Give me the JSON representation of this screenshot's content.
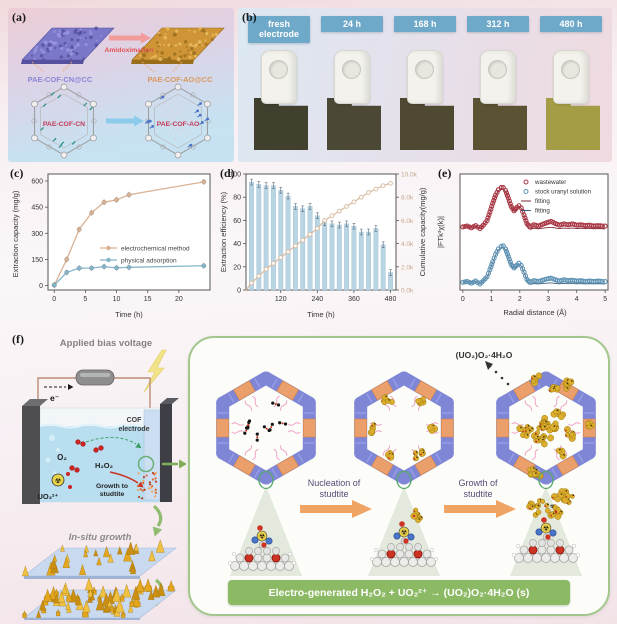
{
  "panels": {
    "a": "(a)",
    "b": "(b)",
    "c": "(c)",
    "d": "(d)",
    "e": "(e)",
    "f": "(f)"
  },
  "panel_a": {
    "membrane_left": "PAE-COF-CN@CC",
    "membrane_right": "PAE-COF-AO@CC",
    "reaction": "Amidoximation",
    "cof_left": "PAE-COF-CN",
    "cof_right": "PAE-COF-AO",
    "colors": {
      "membrane_left": "#7c78c9",
      "membrane_right": "#cf9435",
      "reaction_arrow": "#f29b9b",
      "convert_arrow": "#8ccbe9"
    }
  },
  "panel_b": {
    "tag_color": "#6fa9c9",
    "items": [
      {
        "label": "fresh electrode",
        "color": "#41402e"
      },
      {
        "label": "24 h",
        "color": "#4b4935"
      },
      {
        "label": "168 h",
        "color": "#4f4931"
      },
      {
        "label": "312 h",
        "color": "#5a5232"
      },
      {
        "label": "480 h",
        "color": "#a49d45"
      }
    ]
  },
  "chart_data": [
    {
      "id": "c",
      "type": "line",
      "xlabel": "Time (h)",
      "ylabel": "Extraction capacity (mg/g)",
      "xlim": [
        -1,
        25
      ],
      "ylim": [
        -25,
        640
      ],
      "xticks": [
        0,
        5,
        10,
        15,
        20
      ],
      "yticks": [
        0,
        150,
        300,
        450,
        600
      ],
      "legend_position": "middle-right",
      "grid": false,
      "series": [
        {
          "name": "electrochemical method",
          "color": "#d9b295",
          "x": [
            0,
            2,
            4,
            6,
            8,
            10,
            12,
            24
          ],
          "y": [
            3,
            150,
            322,
            418,
            478,
            492,
            521,
            595
          ]
        },
        {
          "name": "physical adsorption",
          "color": "#85b5c9",
          "x": [
            0,
            2,
            4,
            6,
            8,
            10,
            12,
            24
          ],
          "y": [
            3,
            76,
            100,
            101,
            109,
            102,
            105,
            114
          ]
        }
      ]
    },
    {
      "id": "d",
      "type": "bar",
      "xlabel": "Time (h)",
      "ylabel_left": "Extraction efficiency (%)",
      "ylabel_right": "Cumulative capacity(mg/g)",
      "xlim": [
        6,
        498
      ],
      "ylim_left": [
        0,
        100
      ],
      "ylim_right": [
        0,
        10000
      ],
      "xticks": [
        120,
        240,
        360,
        480
      ],
      "yticks_left": [
        0,
        20,
        40,
        60,
        80,
        100
      ],
      "yticks_right_values": [
        0,
        2,
        4,
        6,
        8,
        10
      ],
      "yticks_right_labels": [
        "0.0k",
        "2.0k",
        "4.0k",
        "6.0k",
        "8.0k",
        "10.0k"
      ],
      "bar_color": "#b9d4e3",
      "bar_edge": "#9cc0d6",
      "line_color": "#d9bfa5",
      "bar_x": [
        24,
        48,
        72,
        96,
        120,
        144,
        168,
        192,
        216,
        240,
        264,
        288,
        312,
        336,
        360,
        384,
        408,
        432,
        456,
        480
      ],
      "bar_values": [
        93,
        91,
        90,
        90,
        86,
        81,
        72,
        70,
        72,
        64,
        58,
        57,
        56,
        57,
        55,
        50,
        50,
        53,
        39,
        15
      ],
      "bar_error": 2.5,
      "cumulative_k": [
        0.6,
        1.2,
        1.8,
        2.3,
        2.8,
        3.3,
        3.8,
        4.3,
        4.8,
        5.3,
        6.0,
        6.4,
        6.8,
        7.2,
        7.6,
        8.0,
        8.4,
        8.7,
        9.0,
        9.2
      ]
    },
    {
      "id": "e",
      "type": "line",
      "xlabel": "Radial distance (Å)",
      "ylabel": "|FTk³χ(k)|",
      "xlim": [
        0,
        5
      ],
      "xticks": [
        0,
        1,
        2,
        3,
        4,
        5
      ],
      "legend": [
        {
          "name": "wastewater",
          "marker": "circle",
          "color": "#a93543"
        },
        {
          "name": "stock uranyl solution",
          "marker": "circle",
          "color": "#5e93b5"
        },
        {
          "name": "fitting",
          "marker": "line",
          "color": "#7a2838"
        },
        {
          "name": "fitting",
          "marker": "line",
          "color": "#44607a"
        }
      ],
      "x": [
        0,
        0.15,
        0.3,
        0.45,
        0.6,
        0.72,
        0.85,
        0.95,
        1.05,
        1.15,
        1.25,
        1.35,
        1.42,
        1.5,
        1.6,
        1.7,
        1.8,
        1.9,
        1.97,
        2.05,
        2.15,
        2.25,
        2.35,
        2.5,
        2.65,
        2.8,
        2.95,
        3.1,
        3.25,
        3.4,
        3.55,
        3.7,
        3.85,
        4.0,
        4.15,
        4.3,
        4.45,
        4.6,
        4.75,
        4.9,
        5.0
      ],
      "series": [
        {
          "name": "wastewater",
          "color": "#a93543",
          "fit_color": "#7a2838",
          "offset": 1.3,
          "y": [
            0.07,
            0.09,
            0.05,
            0.1,
            0.03,
            0.11,
            0.22,
            0.42,
            0.63,
            0.82,
            0.95,
            1.0,
            1.0,
            0.93,
            0.75,
            0.55,
            0.45,
            0.53,
            0.57,
            0.52,
            0.35,
            0.15,
            0.07,
            0.12,
            0.09,
            0.13,
            0.17,
            0.2,
            0.15,
            0.11,
            0.14,
            0.12,
            0.14,
            0.11,
            0.12,
            0.1,
            0.11,
            0.09,
            0.1,
            0.09,
            0.09
          ]
        },
        {
          "name": "stock uranyl solution",
          "color": "#5e93b5",
          "fit_color": "#44607a",
          "offset": 0,
          "y": [
            0.06,
            0.08,
            0.04,
            0.09,
            0.02,
            0.1,
            0.19,
            0.36,
            0.55,
            0.72,
            0.85,
            0.91,
            0.92,
            0.85,
            0.67,
            0.48,
            0.4,
            0.47,
            0.51,
            0.46,
            0.3,
            0.13,
            0.06,
            0.1,
            0.08,
            0.11,
            0.14,
            0.16,
            0.12,
            0.09,
            0.12,
            0.1,
            0.11,
            0.09,
            0.1,
            0.08,
            0.09,
            0.08,
            0.09,
            0.08,
            0.08
          ]
        }
      ]
    }
  ],
  "panel_f": {
    "title": "Applied bias voltage",
    "electron": "e⁻",
    "cof_electrode_l1": "COF",
    "cof_electrode_l2": "electrode",
    "o2": "O₂",
    "h2o2": "H₂O₂",
    "uo2": "UO₂²⁺",
    "growth_to_l1": "Growth to",
    "growth_to_l2": "studtite",
    "insitu": "In-situ growth",
    "product": "(UO₂)O₂·4H₂O",
    "nucleation_l1": "Nucleation of",
    "nucleation_l2": "studtite",
    "growth_l1": "Growth of",
    "growth_l2": "studtite",
    "equation": "Electro-generated H₂O₂ + UO₂²⁺ → (UO₂)O₂·4H₂O (s)",
    "colors": {
      "banner": "#8cb964",
      "arrow_green": "#8fbc6f",
      "arrow_orange": "#f0a464",
      "hex_wall": "#7f86d6",
      "hex_linker": "#eba06c",
      "studtite_gold": "#dcae2e"
    }
  }
}
